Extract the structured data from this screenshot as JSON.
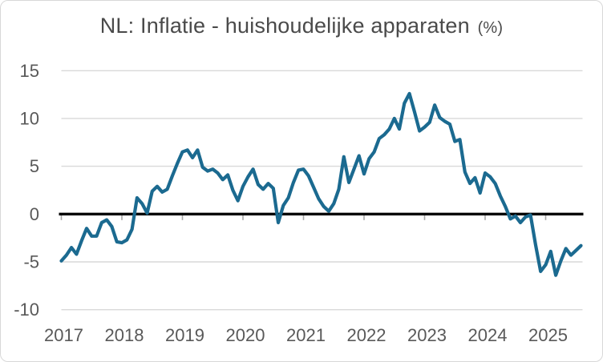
{
  "title": {
    "text": "NL: Inflatie - huishoudelijke apparaten",
    "suffix": "(%)"
  },
  "colors": {
    "line": "#1B6A90",
    "grid": "#D9D9D9",
    "zero_line": "#000000",
    "axis_text": "#595959",
    "tick_mark": "#A6A6A6"
  },
  "chart_data": {
    "type": "line",
    "title": "NL: Inflatie - huishoudelijke apparaten (%)",
    "x_start": "2017-01",
    "frequency": "monthly",
    "x_tick_labels": [
      "2017",
      "2018",
      "2019",
      "2020",
      "2021",
      "2022",
      "2023",
      "2024",
      "2025"
    ],
    "y_ticks": [
      15,
      10,
      5,
      0,
      -5,
      -10
    ],
    "ylim": [
      -10,
      15
    ],
    "grid": true,
    "legend": "none",
    "series": [
      {
        "name": "NL inflatie huishoudelijke apparaten (%)",
        "values": [
          -4.9,
          -4.3,
          -3.5,
          -4.2,
          -2.8,
          -1.5,
          -2.3,
          -2.3,
          -0.9,
          -0.6,
          -1.3,
          -2.9,
          -3.0,
          -2.7,
          -1.6,
          1.7,
          1.1,
          0.1,
          2.4,
          2.9,
          2.3,
          2.6,
          4.0,
          5.3,
          6.5,
          6.7,
          5.9,
          6.7,
          4.9,
          4.5,
          4.7,
          4.3,
          3.6,
          4.1,
          2.5,
          1.4,
          2.9,
          3.9,
          4.7,
          3.1,
          2.6,
          3.2,
          2.7,
          -0.9,
          0.9,
          1.7,
          3.3,
          4.6,
          4.7,
          4.0,
          2.8,
          1.6,
          0.8,
          0.3,
          1.1,
          2.6,
          6.0,
          3.3,
          4.7,
          6.1,
          4.2,
          5.8,
          6.5,
          7.9,
          8.3,
          8.9,
          10.0,
          8.9,
          11.6,
          12.6,
          10.7,
          8.7,
          9.1,
          9.6,
          11.4,
          10.1,
          9.7,
          9.4,
          7.6,
          7.8,
          4.4,
          3.2,
          3.8,
          2.2,
          4.3,
          3.9,
          3.2,
          1.9,
          0.8,
          -0.5,
          -0.2,
          -0.9,
          -0.3,
          -0.1,
          -3.2,
          -6.0,
          -5.3,
          -3.9,
          -6.4,
          -4.9,
          -3.6,
          -4.3,
          -3.8,
          -3.3
        ]
      }
    ]
  }
}
